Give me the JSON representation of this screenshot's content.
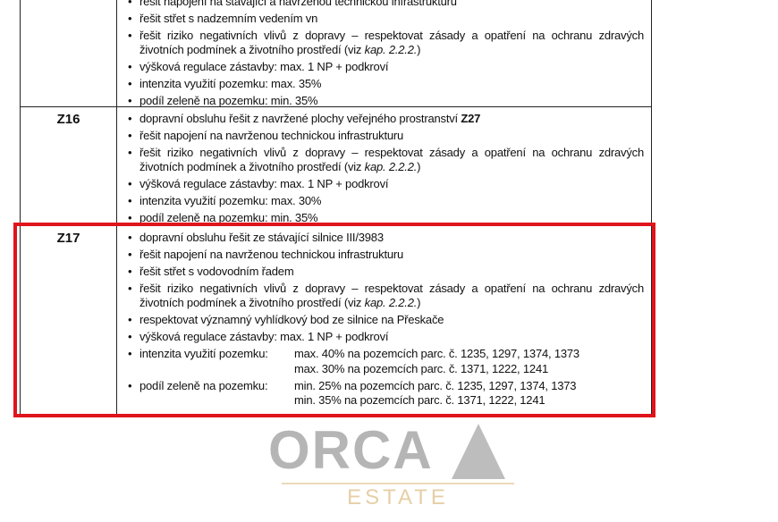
{
  "rows": [
    {
      "code": "",
      "items": [
        "řešit napojení na stávající a navrženou technickou infrastrukturu",
        "řešit střet s nadzemním vedením vn",
        {
          "pre": "řešit riziko negativních vlivů z dopravy – respektovat zásady a opatření na ochranu zdravých životních podmínek a životního prostředí (viz ",
          "kap": "kap. 2.2.2.",
          "post": ")"
        },
        "výšková regulace zástavby: max. 1 NP + podkroví",
        "intenzita využití pozemku: max. 35%",
        "podíl zeleně na pozemku: min. 35%"
      ]
    },
    {
      "code": "Z16",
      "items": [
        {
          "pre": "dopravní obsluhu řešit z navržené plochy veřejného prostranství ",
          "bold": "Z27"
        },
        "řešit napojení na navrženou technickou infrastrukturu",
        {
          "pre": "řešit riziko negativních vlivů z dopravy – respektovat zásady a opatření na ochranu zdravých životních podmínek a životního prostředí (viz ",
          "kap": "kap. 2.2.2.",
          "post": ")"
        },
        "výšková regulace zástavby: max. 1 NP + podkroví",
        "intenzita využití pozemku: max. 30%",
        "podíl zeleně na pozemku: min. 35%"
      ]
    },
    {
      "code": "Z17",
      "items": [
        "dopravní obsluhu řešit ze stávající silnice III/3983",
        "řešit napojení na navrženou technickou infrastrukturu",
        "řešit střet s vodovodním řadem",
        {
          "pre": "řešit riziko negativních vlivů z dopravy – respektovat zásady a opatření na ochranu zdravých životních podmínek a životního prostředí (viz ",
          "kap": "kap. 2.2.2.",
          "post": ")"
        },
        "respektovat významný vyhlídkový bod ze silnice na Přeskače",
        "výšková regulace zástavby: max. 1 NP + podkroví",
        {
          "label": "intenzita využití pozemku:",
          "values": [
            "max. 40% na pozemcích parc. č. 1235, 1297, 1374, 1373",
            "max. 30% na pozemcích parc. č. 1371, 1222, 1241"
          ]
        },
        {
          "label": "podíl zeleně na pozemku:",
          "values": [
            "min. 25% na pozemcích parc. č. 1235, 1297, 1374, 1373",
            "min. 35% na pozemcích parc. č. 1371, 1222, 1241"
          ]
        }
      ]
    }
  ],
  "watermark": {
    "logo": "ORCA",
    "sub": "ESTATE"
  },
  "highlight_color": "#e0141c"
}
